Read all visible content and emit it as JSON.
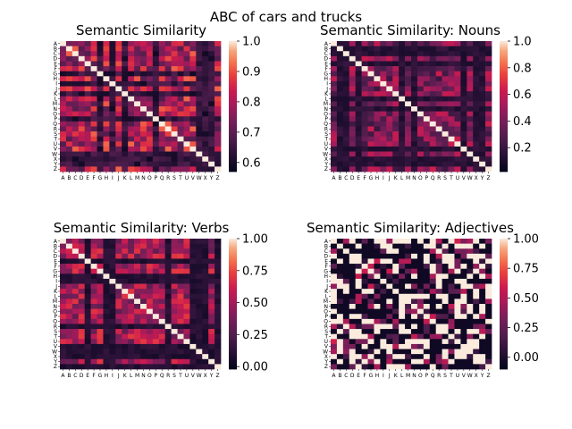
{
  "figure": {
    "suptitle": "ABC of cars and trucks"
  },
  "chart_data": [
    {
      "type": "heatmap",
      "title": "Semantic Similarity",
      "rows": [
        "A",
        "B",
        "C",
        "D",
        "E",
        "F",
        "G",
        "H",
        "I",
        "J",
        "K",
        "L",
        "M",
        "N",
        "O",
        "P",
        "Q",
        "R",
        "S",
        "T",
        "U",
        "V",
        "W",
        "X",
        "Y",
        "Z"
      ],
      "cols": [
        "A",
        "B",
        "C",
        "D",
        "E",
        "F",
        "G",
        "H",
        "I",
        "J",
        "K",
        "L",
        "M",
        "N",
        "O",
        "P",
        "Q",
        "R",
        "S",
        "T",
        "U",
        "V",
        "W",
        "X",
        "Y",
        "Z"
      ],
      "diagonal": 1.0,
      "vmin": 0.57,
      "vmax": 1.0,
      "colorbar_ticks": [
        "1.0",
        "0.9",
        "0.8",
        "0.7",
        "0.6"
      ],
      "colorbar_tick_values": [
        1.0,
        0.9,
        0.8,
        0.7,
        0.6
      ],
      "pattern": {
        "base": 0.8,
        "spread": 0.12,
        "dark_rows": [
          8,
          10,
          22,
          23
        ],
        "dark_cols": [
          6,
          8,
          15,
          24
        ],
        "dark_value": 0.64,
        "seed": 11
      }
    },
    {
      "type": "heatmap",
      "title": "Semantic Similarity: Nouns",
      "rows": [
        "A",
        "B",
        "C",
        "D",
        "E",
        "F",
        "G",
        "H",
        "I",
        "J",
        "K",
        "L",
        "M",
        "N",
        "O",
        "P",
        "Q",
        "R",
        "S",
        "T",
        "U",
        "V",
        "W",
        "X",
        "Y",
        "Z"
      ],
      "cols": [
        "A",
        "B",
        "C",
        "D",
        "E",
        "F",
        "G",
        "H",
        "I",
        "J",
        "K",
        "L",
        "M",
        "N",
        "O",
        "P",
        "Q",
        "R",
        "S",
        "T",
        "U",
        "V",
        "W",
        "X",
        "Y",
        "Z"
      ],
      "diagonal": 1.0,
      "vmin": 0.02,
      "vmax": 1.0,
      "colorbar_ticks": [
        "1.0",
        "0.8",
        "0.6",
        "0.4",
        "0.2"
      ],
      "colorbar_tick_values": [
        1.0,
        0.8,
        0.6,
        0.4,
        0.2
      ],
      "pattern": {
        "base": 0.42,
        "spread": 0.22,
        "dark_rows": [
          2,
          11,
          21,
          24
        ],
        "dark_cols": [
          1,
          4,
          13,
          23
        ],
        "dark_value": 0.15,
        "seed": 23
      }
    },
    {
      "type": "heatmap",
      "title": "Semantic Similarity: Verbs",
      "rows": [
        "A",
        "B",
        "C",
        "D",
        "E",
        "F",
        "G",
        "H",
        "I",
        "J",
        "K",
        "L",
        "M",
        "N",
        "O",
        "P",
        "Q",
        "R",
        "S",
        "T",
        "U",
        "V",
        "W",
        "X",
        "Y",
        "Z"
      ],
      "cols": [
        "A",
        "B",
        "C",
        "D",
        "E",
        "F",
        "G",
        "H",
        "I",
        "J",
        "K",
        "L",
        "M",
        "N",
        "O",
        "P",
        "Q",
        "R",
        "S",
        "T",
        "U",
        "V",
        "W",
        "X",
        "Y",
        "Z"
      ],
      "diagonal": 1.0,
      "vmin": -0.02,
      "vmax": 1.0,
      "colorbar_ticks": [
        "1.00",
        "0.75",
        "0.50",
        "0.25",
        "0.00"
      ],
      "colorbar_tick_values": [
        1.0,
        0.75,
        0.5,
        0.25,
        0.0
      ],
      "pattern": {
        "base": 0.5,
        "spread": 0.22,
        "dark_rows": [
          4,
          8,
          22,
          25
        ],
        "dark_cols": [
          7,
          17,
          21,
          23
        ],
        "dark_value": 0.1,
        "seed": 37
      }
    },
    {
      "type": "heatmap",
      "title": "Semantic Similarity: Adjectives",
      "rows": [
        "A",
        "B",
        "C",
        "D",
        "E",
        "F",
        "G",
        "H",
        "I",
        "J",
        "K",
        "L",
        "M",
        "N",
        "O",
        "P",
        "Q",
        "R",
        "S",
        "T",
        "U",
        "V",
        "W",
        "X",
        "Y",
        "Z"
      ],
      "cols": [
        "A",
        "B",
        "C",
        "D",
        "E",
        "F",
        "G",
        "H",
        "I",
        "J",
        "K",
        "L",
        "M",
        "N",
        "O",
        "P",
        "Q",
        "R",
        "S",
        "T",
        "U",
        "V",
        "W",
        "X",
        "Y",
        "Z"
      ],
      "diagonal": 1.0,
      "vmin": -0.1,
      "vmax": 1.0,
      "colorbar_ticks": [
        "1.00",
        "0.75",
        "0.50",
        "0.25",
        "0.00"
      ],
      "colorbar_tick_values": [
        1.0,
        0.75,
        0.5,
        0.25,
        0.0
      ],
      "pattern": {
        "binary": true,
        "base": 0.2,
        "spread": 0.25,
        "dark_rows": [],
        "dark_cols": [],
        "dark_value": -0.05,
        "seed": 51
      }
    }
  ]
}
